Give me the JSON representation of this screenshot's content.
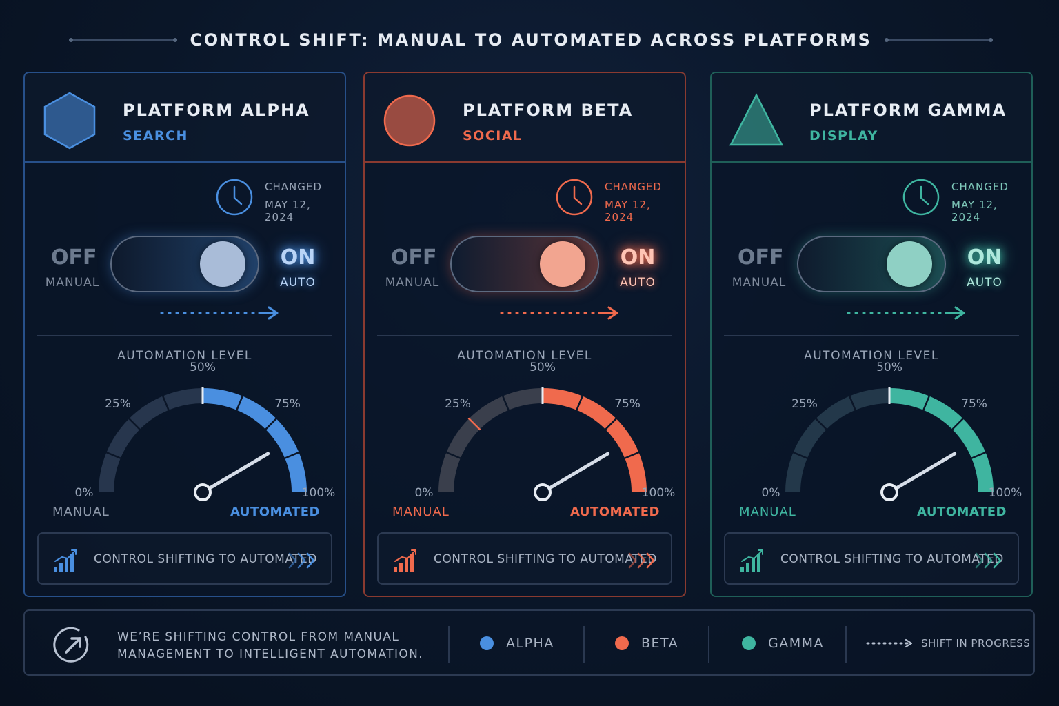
{
  "title": "CONTROL SHIFT: MANUAL TO AUTOMATED ACROSS PLATFORMS",
  "platforms": [
    {
      "name": "PLATFORM ALPHA",
      "category": "SEARCH",
      "logo": "hexagon-icon",
      "accent": "#4a8fe0",
      "border": "#27508a",
      "knob": "#a9bcd8",
      "on_color": "#b9d4f6",
      "changed_label": "CHANGED",
      "changed_date": "MAY 12, 2024",
      "toggle": {
        "off": "OFF",
        "off_sub": "MANUAL",
        "on": "ON",
        "on_sub": "AUTO",
        "state": "on"
      },
      "gauge": {
        "title": "AUTOMATION LEVEL",
        "ticks": [
          "0%",
          "25%",
          "50%",
          "75%",
          "100%"
        ],
        "value_percent": 83,
        "left_label": "MANUAL",
        "right_label": "AUTOMATED"
      },
      "status": "CONTROL SHIFTING TO AUTOMATED"
    },
    {
      "name": "PLATFORM BETA",
      "category": "SOCIAL",
      "logo": "circle-icon",
      "accent": "#f06a4d",
      "border": "#8a3a30",
      "knob": "#f2a590",
      "on_color": "#ffc4b4",
      "changed_label": "CHANGED",
      "changed_date": "MAY 12, 2024",
      "toggle": {
        "off": "OFF",
        "off_sub": "MANUAL",
        "on": "ON",
        "on_sub": "AUTO",
        "state": "on"
      },
      "gauge": {
        "title": "AUTOMATION LEVEL",
        "ticks": [
          "0%",
          "25%",
          "50%",
          "75%",
          "100%"
        ],
        "value_percent": 83,
        "left_label": "MANUAL",
        "right_label": "AUTOMATED"
      },
      "status": "CONTROL SHIFTING TO AUTOMATED"
    },
    {
      "name": "PLATFORM GAMMA",
      "category": "DISPLAY",
      "logo": "triangle-icon",
      "accent": "#3fb5a0",
      "border": "#1f5f58",
      "knob": "#8fd0c4",
      "on_color": "#aee8dc",
      "changed_label": "CHANGED",
      "changed_date": "MAY 12, 2024",
      "toggle": {
        "off": "OFF",
        "off_sub": "MANUAL",
        "on": "ON",
        "on_sub": "AUTO",
        "state": "on"
      },
      "gauge": {
        "title": "AUTOMATION LEVEL",
        "ticks": [
          "0%",
          "25%",
          "50%",
          "75%",
          "100%"
        ],
        "value_percent": 83,
        "left_label": "MANUAL",
        "right_label": "AUTOMATED"
      },
      "status": "CONTROL SHIFTING TO AUTOMATED"
    }
  ],
  "footer": {
    "message_line1": "WE’RE SHIFTING CONTROL FROM MANUAL",
    "message_line2": "MANAGEMENT TO INTELLIGENT AUTOMATION.",
    "legend": [
      {
        "label": "ALPHA",
        "color": "#4a8fe0"
      },
      {
        "label": "BETA",
        "color": "#f06a4d"
      },
      {
        "label": "GAMMA",
        "color": "#3fb5a0"
      }
    ],
    "shift_label": "SHIFT IN PROGRESS"
  }
}
